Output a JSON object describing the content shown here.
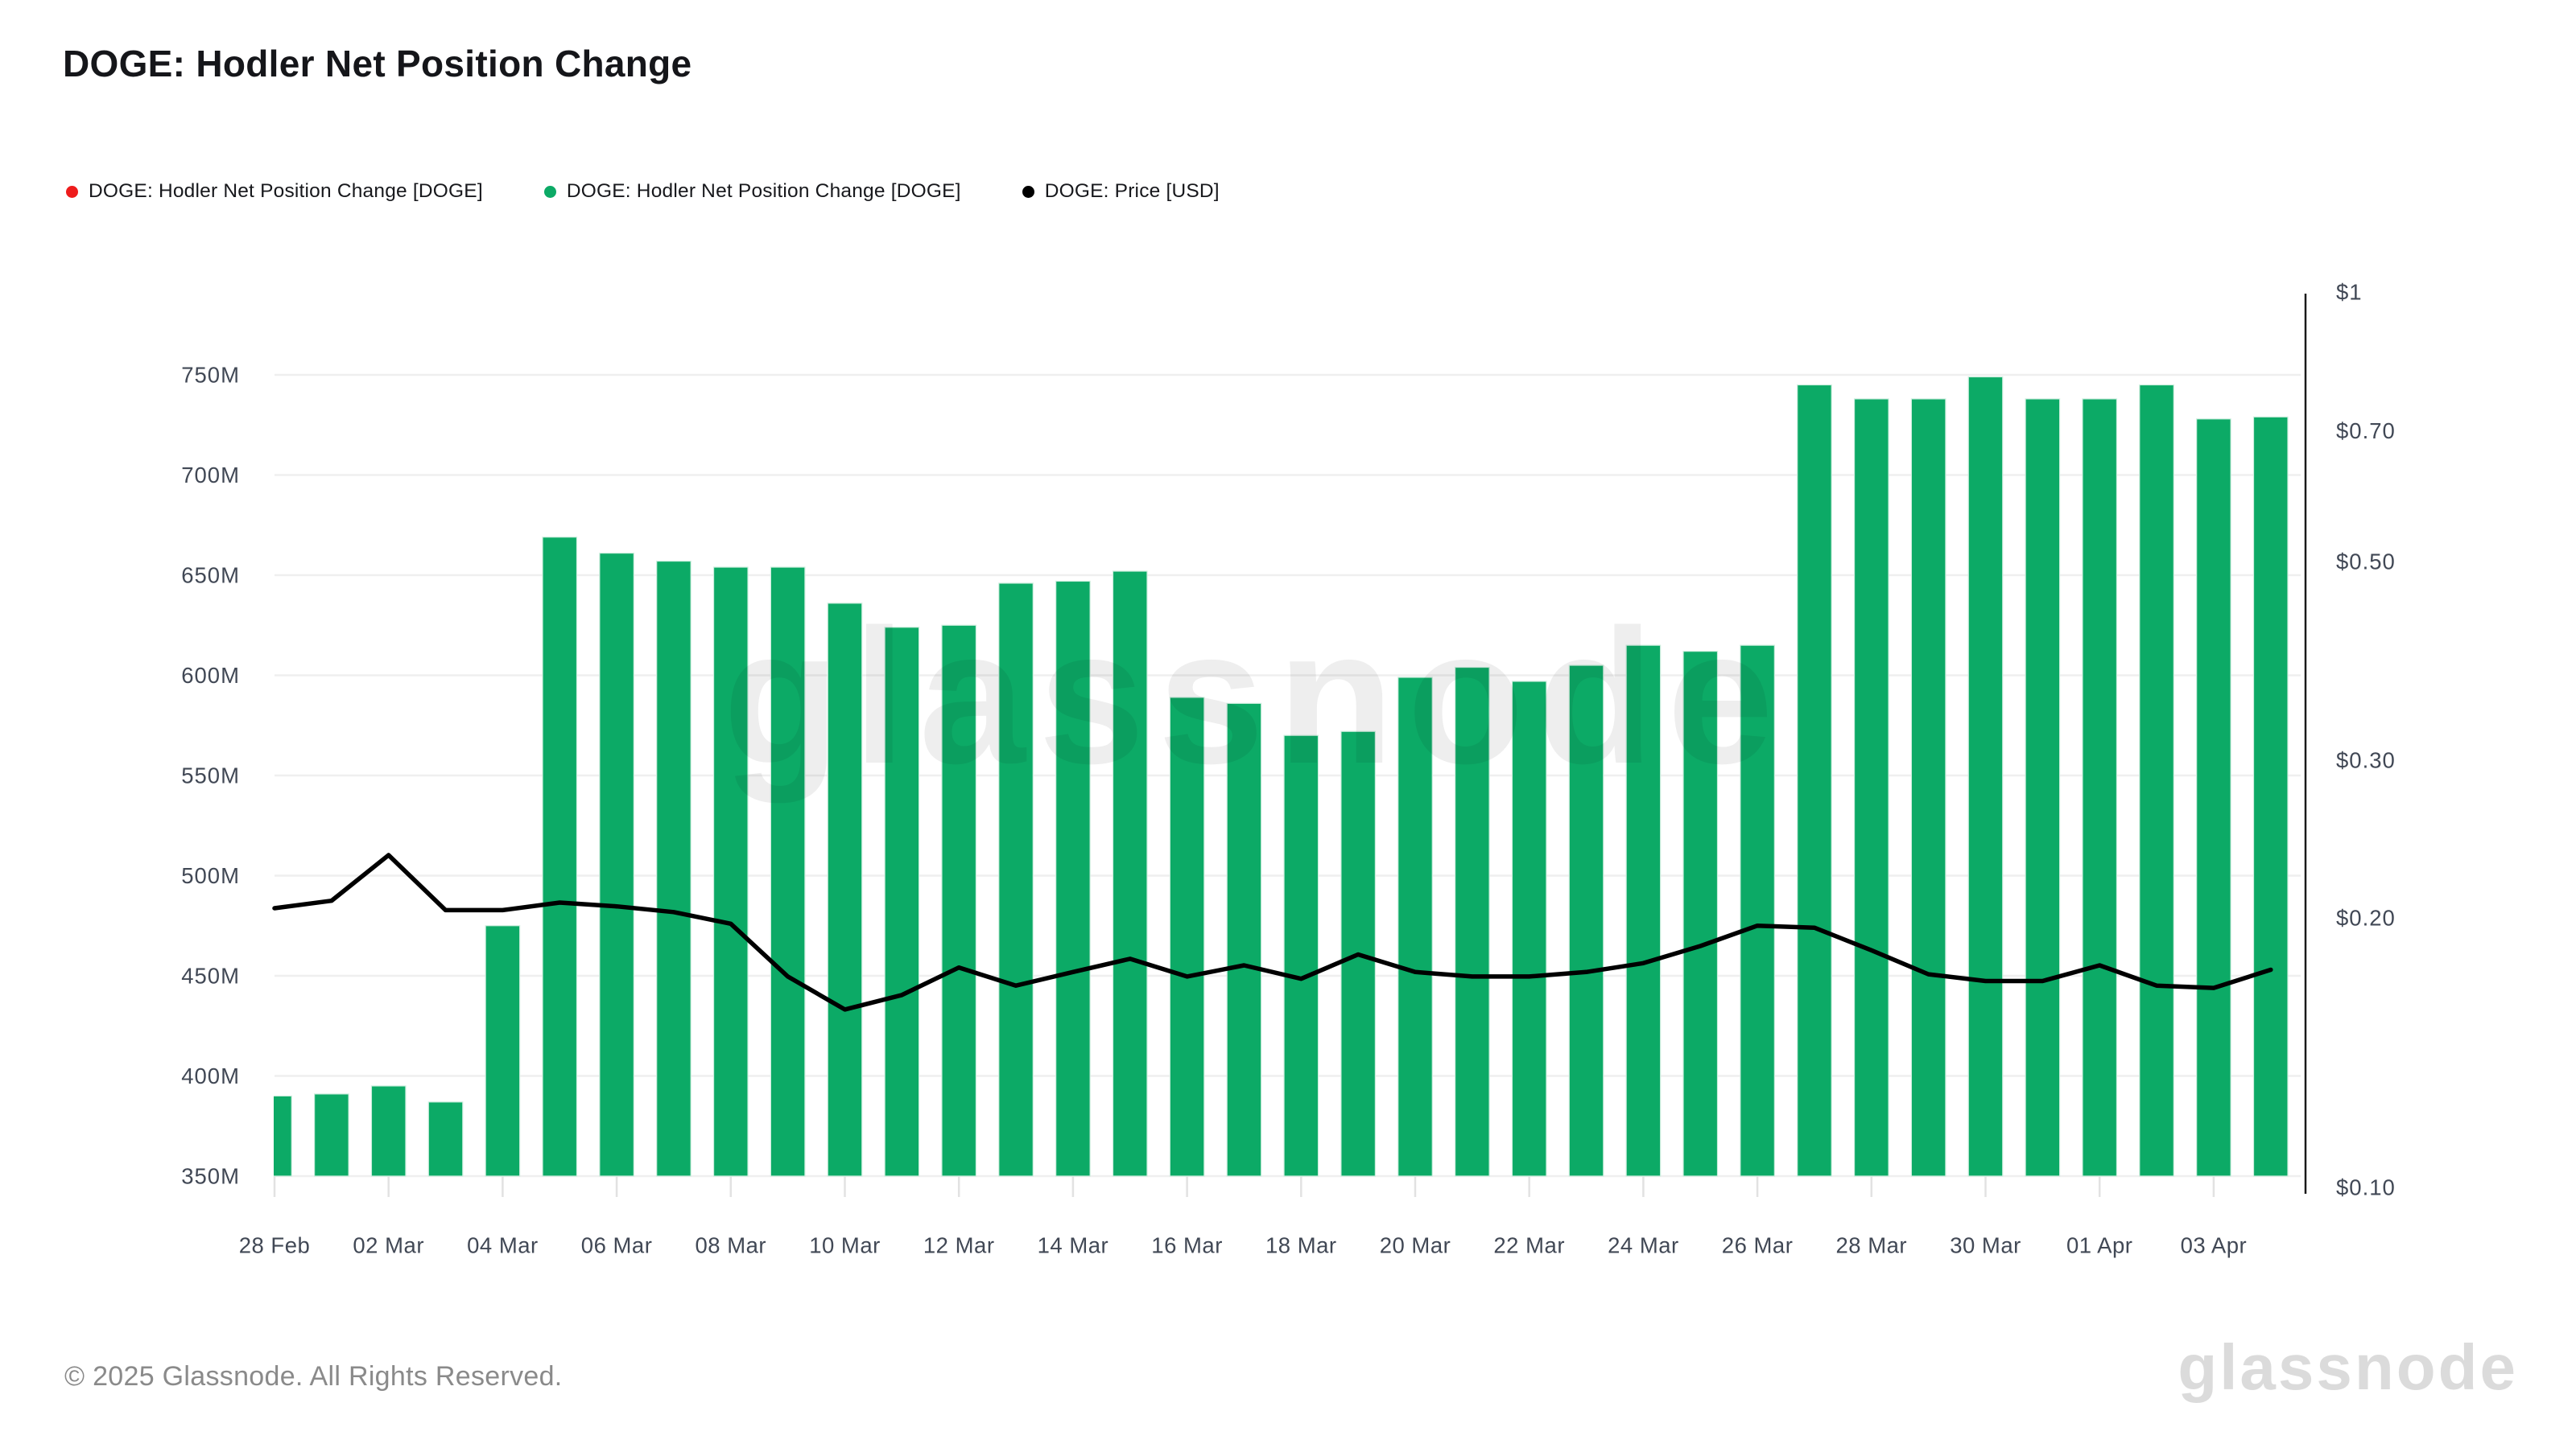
{
  "page": {
    "title": "DOGE: Hodler Net Position Change",
    "footer": "© 2025 Glassnode. All Rights Reserved.",
    "watermark": "glassnode",
    "brand_logo": "glassnode"
  },
  "legend": {
    "items": [
      {
        "label": "DOGE: Hodler Net Position Change [DOGE]",
        "color": "#ee1c1c"
      },
      {
        "label": "DOGE: Hodler Net Position Change [DOGE]",
        "color": "#0caa66"
      },
      {
        "label": "DOGE: Price [USD]",
        "color": "#000000"
      }
    ]
  },
  "chart_data": {
    "type": "bar",
    "title": "DOGE: Hodler Net Position Change",
    "x": [
      "28 Feb",
      "01 Mar",
      "02 Mar",
      "03 Mar",
      "04 Mar",
      "05 Mar",
      "06 Mar",
      "07 Mar",
      "08 Mar",
      "09 Mar",
      "10 Mar",
      "11 Mar",
      "12 Mar",
      "13 Mar",
      "14 Mar",
      "15 Mar",
      "16 Mar",
      "17 Mar",
      "18 Mar",
      "19 Mar",
      "20 Mar",
      "21 Mar",
      "22 Mar",
      "23 Mar",
      "24 Mar",
      "25 Mar",
      "26 Mar",
      "27 Mar",
      "28 Mar",
      "29 Mar",
      "30 Mar",
      "31 Mar",
      "01 Apr",
      "02 Apr",
      "03 Apr",
      "04 Apr"
    ],
    "series": [
      {
        "name": "DOGE: Hodler Net Position Change [DOGE]",
        "type": "bar",
        "axis": "left",
        "unit": "M DOGE",
        "color": "#0caa66",
        "values": [
          390,
          391,
          395,
          387,
          475,
          669,
          661,
          657,
          654,
          654,
          636,
          624,
          625,
          646,
          647,
          652,
          589,
          586,
          570,
          572,
          599,
          604,
          597,
          605,
          615,
          612,
          615,
          745,
          738,
          738,
          749,
          738,
          738,
          745,
          728,
          729
        ]
      },
      {
        "name": "DOGE: Price [USD]",
        "type": "line",
        "axis": "right",
        "unit": "USD",
        "color": "#000000",
        "values": [
          0.205,
          0.209,
          0.235,
          0.204,
          0.204,
          0.208,
          0.206,
          0.203,
          0.197,
          0.172,
          0.158,
          0.164,
          0.176,
          0.168,
          0.174,
          0.18,
          0.172,
          0.177,
          0.171,
          0.182,
          0.174,
          0.172,
          0.172,
          0.174,
          0.178,
          0.186,
          0.196,
          0.195,
          0.184,
          0.173,
          0.17,
          0.17,
          0.177,
          0.168,
          0.167,
          0.175
        ]
      }
    ],
    "left_axis": {
      "ticks": [
        350,
        400,
        450,
        500,
        550,
        600,
        650,
        700,
        750
      ],
      "labels": [
        "350M",
        "400M",
        "450M",
        "500M",
        "550M",
        "600M",
        "650M",
        "700M",
        "750M"
      ],
      "range_millions": [
        350,
        775
      ],
      "scale": "linear"
    },
    "right_axis": {
      "ticks": [
        0.1,
        0.2,
        0.3,
        0.5,
        0.7,
        1
      ],
      "labels": [
        "$0.10",
        "$0.20",
        "$0.30",
        "$0.50",
        "$0.70",
        "$1"
      ],
      "scale": "log"
    },
    "x_tick_labels": [
      "28 Feb",
      "02 Mar",
      "04 Mar",
      "06 Mar",
      "08 Mar",
      "10 Mar",
      "12 Mar",
      "14 Mar",
      "16 Mar",
      "18 Mar",
      "20 Mar",
      "22 Mar",
      "24 Mar",
      "26 Mar",
      "28 Mar",
      "30 Mar",
      "01 Apr",
      "03 Apr"
    ],
    "x_tick_day_indices": [
      0,
      2,
      4,
      6,
      8,
      10,
      12,
      14,
      16,
      18,
      20,
      22,
      24,
      26,
      28,
      30,
      32,
      34
    ],
    "grid": true,
    "legend_position": "top-left",
    "colors": {
      "bar_green": "#0caa66",
      "bar_edge": "#cdeede",
      "price_line": "#000000",
      "gridline": "#efefef",
      "tick_mark": "#e2e2e2",
      "axis_line": "#1a1a1a",
      "axis_label": "#414855"
    }
  }
}
